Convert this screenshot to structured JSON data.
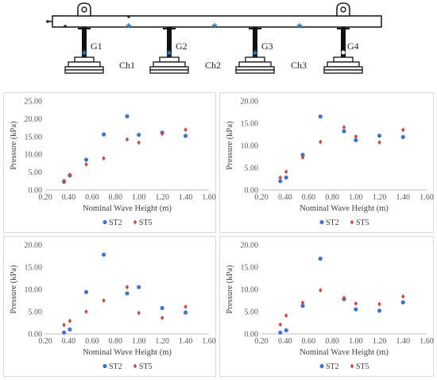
{
  "schematic": {
    "gauges": [
      "G1",
      "G2",
      "G3",
      "G4"
    ],
    "chambers": [
      "Ch1",
      "Ch2",
      "Ch3"
    ]
  },
  "chart_data": [
    {
      "type": "scatter",
      "xlabel": "Nominal Wave Height (m)",
      "ylabel": "Pressure (kPa)",
      "xlim": [
        0.2,
        1.6
      ],
      "ylim": [
        0.0,
        25.0
      ],
      "xticks": [
        "0.20",
        "0.40",
        "0.60",
        "0.80",
        "1.00",
        "1.20",
        "1.40",
        "1.60"
      ],
      "yticks": [
        "0.00",
        "5.00",
        "10.00",
        "15.00",
        "20.00",
        "25.00"
      ],
      "legend": "bottom",
      "grid": false,
      "series": [
        {
          "name": "ST2",
          "color": "#4472c4",
          "marker": "circle",
          "points": [
            [
              0.36,
              2.3
            ],
            [
              0.41,
              4.1
            ],
            [
              0.55,
              8.5
            ],
            [
              0.7,
              15.6
            ],
            [
              0.9,
              20.7
            ],
            [
              1.0,
              15.5
            ],
            [
              1.2,
              16.1
            ],
            [
              1.4,
              15.2
            ]
          ]
        },
        {
          "name": "ST5",
          "color": "#c0504d",
          "marker": "diamond",
          "points": [
            [
              0.36,
              2.6
            ],
            [
              0.41,
              4.3
            ],
            [
              0.55,
              7.2
            ],
            [
              0.7,
              8.9
            ],
            [
              0.9,
              14.2
            ],
            [
              1.0,
              13.3
            ],
            [
              1.2,
              15.8
            ],
            [
              1.4,
              16.9
            ]
          ]
        }
      ]
    },
    {
      "type": "scatter",
      "xlabel": "Nominal Wave Height (m)",
      "ylabel": "Pressure (kPa)",
      "xlim": [
        0.2,
        1.6
      ],
      "ylim": [
        0.0,
        20.0
      ],
      "xticks": [
        "0.20",
        "0.40",
        "0.60",
        "0.80",
        "1.00",
        "1.20",
        "1.40",
        "1.60"
      ],
      "yticks": [
        "0.00",
        "5.00",
        "10.00",
        "15.00",
        "20.00"
      ],
      "legend": "bottom",
      "grid": false,
      "series": [
        {
          "name": "ST2",
          "color": "#4472c4",
          "marker": "circle",
          "points": [
            [
              0.36,
              2.0
            ],
            [
              0.41,
              2.8
            ],
            [
              0.55,
              7.9
            ],
            [
              0.7,
              16.5
            ],
            [
              0.9,
              13.2
            ],
            [
              1.0,
              11.2
            ],
            [
              1.2,
              12.2
            ],
            [
              1.4,
              11.9
            ]
          ]
        },
        {
          "name": "ST5",
          "color": "#c0504d",
          "marker": "diamond",
          "points": [
            [
              0.36,
              2.8
            ],
            [
              0.41,
              4.1
            ],
            [
              0.55,
              7.3
            ],
            [
              0.7,
              10.8
            ],
            [
              0.9,
              14.1
            ],
            [
              1.0,
              12.0
            ],
            [
              1.2,
              10.7
            ],
            [
              1.4,
              13.5
            ]
          ]
        }
      ]
    },
    {
      "type": "scatter",
      "xlabel": "Nominal Wave Height (m)",
      "ylabel": "Pressure (kPa)",
      "xlim": [
        0.2,
        1.6
      ],
      "ylim": [
        0.0,
        20.0
      ],
      "xticks": [
        "0.20",
        "0.40",
        "0.60",
        "0.80",
        "1.00",
        "1.20",
        "1.40",
        "1.60"
      ],
      "yticks": [
        "0.00",
        "5.00",
        "10.00",
        "15.00",
        "20.00"
      ],
      "legend": "bottom",
      "grid": false,
      "series": [
        {
          "name": "ST2",
          "color": "#4472c4",
          "marker": "circle",
          "points": [
            [
              0.36,
              0.3
            ],
            [
              0.41,
              1.0
            ],
            [
              0.55,
              9.4
            ],
            [
              0.7,
              17.8
            ],
            [
              0.9,
              9.1
            ],
            [
              1.0,
              10.5
            ],
            [
              1.2,
              5.8
            ],
            [
              1.4,
              4.8
            ]
          ]
        },
        {
          "name": "ST5",
          "color": "#c0504d",
          "marker": "diamond",
          "points": [
            [
              0.36,
              2.0
            ],
            [
              0.41,
              2.9
            ],
            [
              0.55,
              5.0
            ],
            [
              0.7,
              7.5
            ],
            [
              0.9,
              10.5
            ],
            [
              1.0,
              4.7
            ],
            [
              1.2,
              3.6
            ],
            [
              1.4,
              6.1
            ]
          ]
        }
      ]
    },
    {
      "type": "scatter",
      "xlabel": "Nominal Wave Height (m)",
      "ylabel": "Pressure (kPa)",
      "xlim": [
        0.2,
        1.6
      ],
      "ylim": [
        0.0,
        20.0
      ],
      "xticks": [
        "0.20",
        "0.40",
        "0.60",
        "0.80",
        "1.00",
        "1.20",
        "1.40",
        "1.60"
      ],
      "yticks": [
        "0.00",
        "5.00",
        "10.00",
        "15.00",
        "20.00"
      ],
      "legend": "bottom",
      "grid": false,
      "series": [
        {
          "name": "ST2",
          "color": "#4472c4",
          "marker": "circle",
          "points": [
            [
              0.36,
              0.3
            ],
            [
              0.41,
              0.8
            ],
            [
              0.55,
              6.3
            ],
            [
              0.7,
              16.9
            ],
            [
              0.9,
              7.8
            ],
            [
              1.0,
              5.5
            ],
            [
              1.2,
              5.2
            ],
            [
              1.4,
              7.1
            ]
          ]
        },
        {
          "name": "ST5",
          "color": "#c0504d",
          "marker": "diamond",
          "points": [
            [
              0.36,
              2.1
            ],
            [
              0.41,
              4.1
            ],
            [
              0.55,
              7.0
            ],
            [
              0.7,
              9.8
            ],
            [
              0.9,
              8.1
            ],
            [
              1.0,
              6.8
            ],
            [
              1.2,
              6.7
            ],
            [
              1.4,
              8.4
            ]
          ]
        }
      ]
    }
  ]
}
